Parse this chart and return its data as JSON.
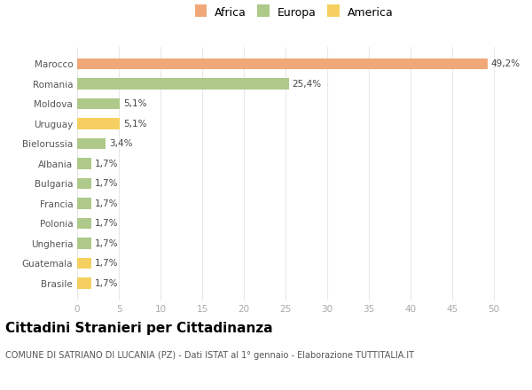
{
  "categories": [
    "Brasile",
    "Guatemala",
    "Ungheria",
    "Polonia",
    "Francia",
    "Bulgaria",
    "Albania",
    "Bielorussia",
    "Uruguay",
    "Moldova",
    "Romania",
    "Marocco"
  ],
  "values": [
    1.7,
    1.7,
    1.7,
    1.7,
    1.7,
    1.7,
    1.7,
    3.4,
    5.1,
    5.1,
    25.4,
    49.2
  ],
  "colors": [
    "#f5d060",
    "#f5d060",
    "#aec98a",
    "#aec98a",
    "#aec98a",
    "#aec98a",
    "#aec98a",
    "#aec98a",
    "#f5d060",
    "#aec98a",
    "#aec98a",
    "#f0a878"
  ],
  "legend_labels": [
    "Africa",
    "Europa",
    "America"
  ],
  "legend_colors": [
    "#f0a878",
    "#aec98a",
    "#f5d060"
  ],
  "title": "Cittadini Stranieri per Cittadinanza",
  "subtitle": "COMUNE DI SATRIANO DI LUCANIA (PZ) - Dati ISTAT al 1° gennaio - Elaborazione TUTTITALIA.IT",
  "xlim": [
    0,
    52
  ],
  "xticks": [
    0,
    5,
    10,
    15,
    20,
    25,
    30,
    35,
    40,
    45,
    50
  ],
  "bar_height": 0.55,
  "label_fontsize": 7.5,
  "title_fontsize": 11,
  "subtitle_fontsize": 7,
  "ytick_fontsize": 7.5,
  "xtick_fontsize": 7.5,
  "background_color": "#ffffff",
  "grid_color": "#e8e8e8",
  "label_color": "#444444",
  "ytick_color": "#555555",
  "xtick_color": "#aaaaaa"
}
